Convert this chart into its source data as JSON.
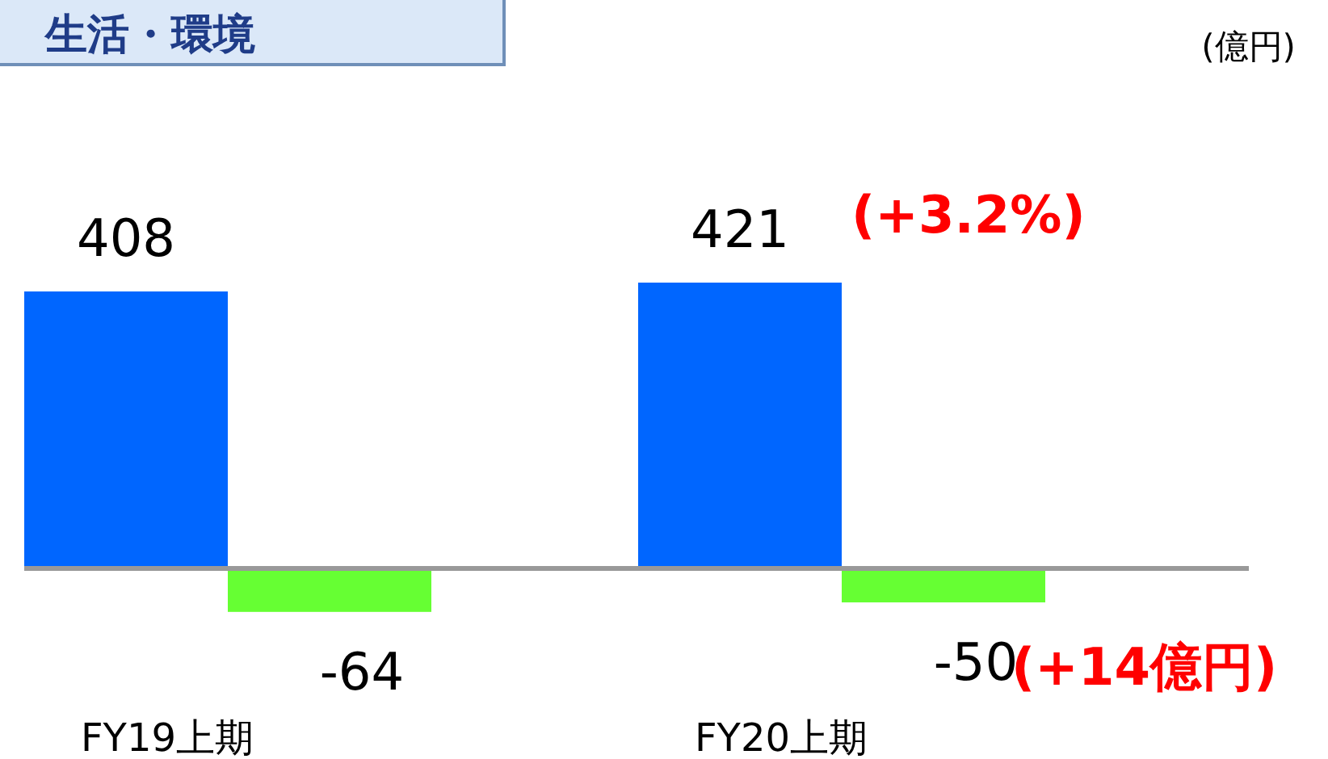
{
  "chart_data": {
    "type": "bar",
    "title": "生活・環境",
    "categories": [
      "FY19上期",
      "FY20上期"
    ],
    "series": [
      {
        "color": "#0066ff",
        "values": [
          408,
          421
        ]
      },
      {
        "color": "#66ff33",
        "values": [
          -64,
          -50
        ]
      }
    ],
    "data_labels": true,
    "annotations": [
      "(億円)",
      "(+3.2%)",
      "(+14億円)"
    ]
  }
}
